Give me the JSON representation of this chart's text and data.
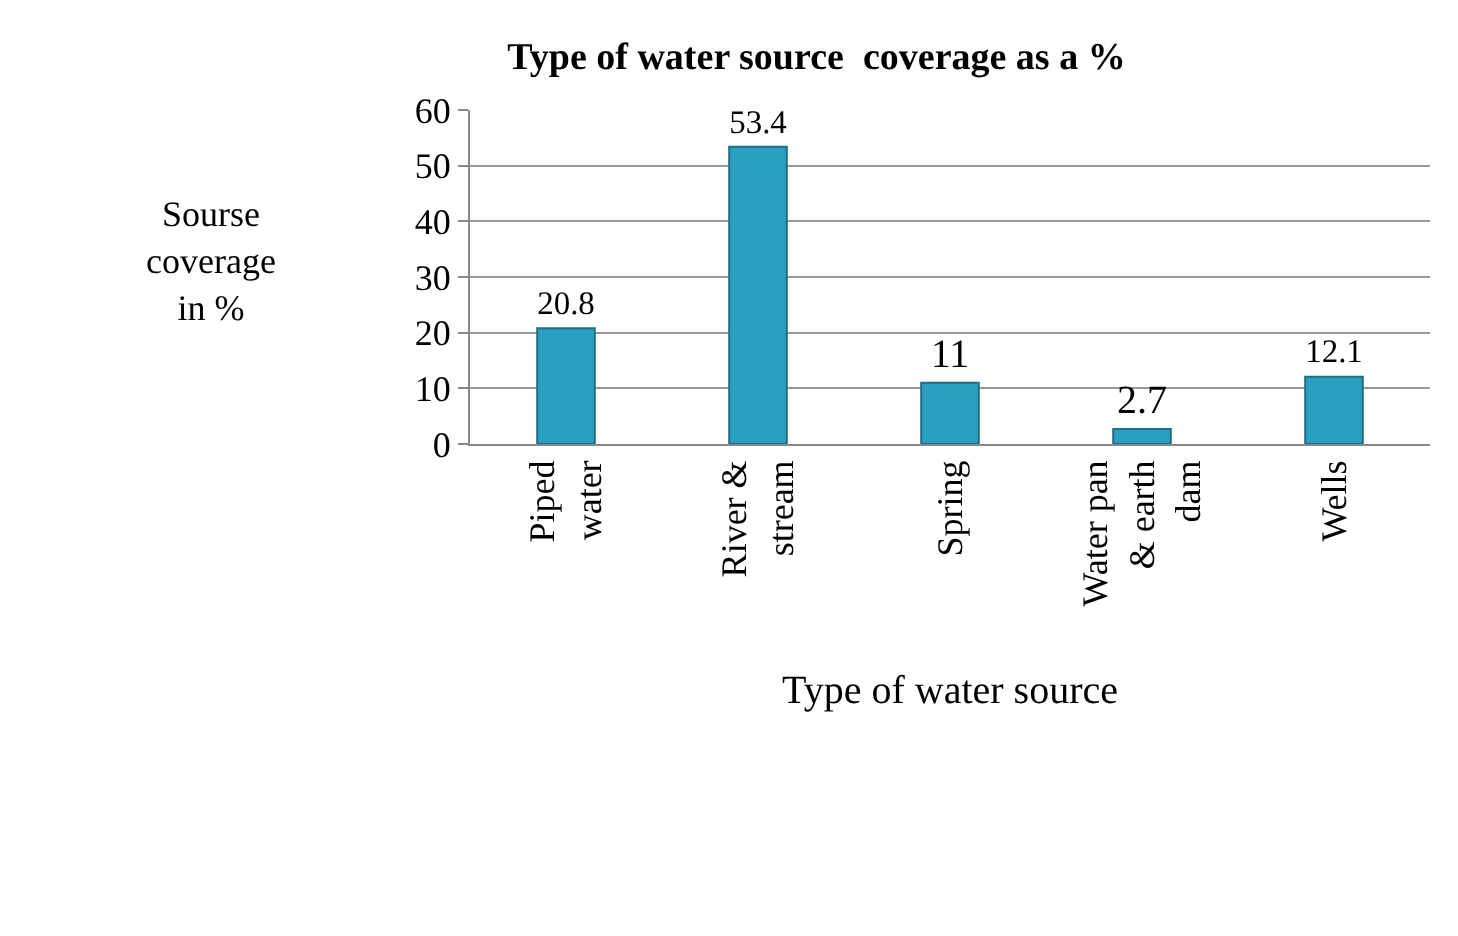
{
  "chart_data": {
    "type": "bar",
    "title": "Type of water source  coverage as a %",
    "xlabel": "Type of water source",
    "ylabel": "Sourse coverage in %",
    "categories": [
      "Piped water",
      "River & stream",
      "Spring",
      "Water pan & earth dam",
      "Wells"
    ],
    "values": [
      20.8,
      53.4,
      11,
      2.7,
      12.1
    ],
    "color": "#2b9fbf",
    "ylim": [
      0,
      60
    ],
    "yticks": [
      0,
      10,
      20,
      30,
      40,
      50,
      60
    ],
    "grid": "y",
    "data_labels": true
  }
}
